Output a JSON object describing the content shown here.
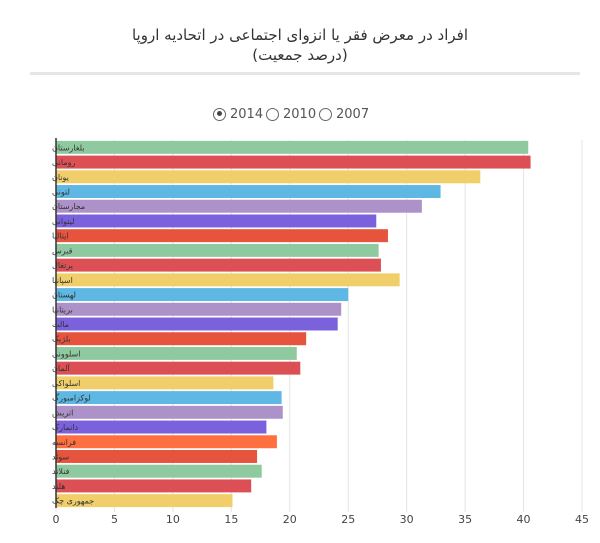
{
  "header": {
    "title": "افراد در معرض فقر یا انزوای اجتماعی در اتحادیه اروپا",
    "subtitle": "(درصد جمعیت)"
  },
  "legend": {
    "items": [
      {
        "label": "2014",
        "selected": true
      },
      {
        "label": "2010",
        "selected": false
      },
      {
        "label": "2007",
        "selected": false
      }
    ]
  },
  "chart_data": {
    "type": "bar",
    "orientation": "horizontal",
    "title": "افراد در معرض فقر یا انزوای اجتماعی در اتحادیه اروپا",
    "subtitle": "(درصد جمعیت)",
    "xlabel": "",
    "ylabel": "",
    "xlim": [
      0,
      45
    ],
    "xticks": [
      0,
      5,
      10,
      15,
      20,
      25,
      30,
      35,
      40,
      45
    ],
    "grid": true,
    "legend_position": "top-center",
    "series_name": "2014",
    "categories": [
      "بلغارستان",
      "رومانی",
      "یونان",
      "لتونی",
      "مجارستان",
      "لیتوانی",
      "ایتالیا",
      "قبرس",
      "پرتغال",
      "اسپانیا",
      "لهستان",
      "بریتانیا",
      "مالت",
      "بلژیک",
      "اسلوونی",
      "آلمان",
      "اسلواکی",
      "لوکزامبورگ",
      "اتریش",
      "دانمارک",
      "فرانسه",
      "سوئد",
      "فنلاند",
      "هلند",
      "جمهوری چک"
    ],
    "values": [
      40.4,
      40.6,
      36.3,
      32.9,
      31.3,
      27.4,
      28.4,
      27.6,
      27.8,
      29.4,
      25.0,
      24.4,
      24.1,
      21.4,
      20.6,
      20.9,
      18.6,
      19.3,
      19.4,
      18.0,
      18.9,
      17.2,
      17.6,
      16.7,
      15.1
    ],
    "colors": [
      "#8fc9a0",
      "#dc5055",
      "#f0cf6a",
      "#5eb8e3",
      "#ad92c9",
      "#7b61db",
      "#e7543d",
      "#8fc9a0",
      "#dc5055",
      "#f0cf6a",
      "#5eb8e3",
      "#ad92c9",
      "#7b61db",
      "#e7543d",
      "#8fc9a0",
      "#dc5055",
      "#f0cf6a",
      "#5eb8e3",
      "#ad92c9",
      "#7b61db",
      "#ff6f40",
      "#e7543d",
      "#8fc9a0",
      "#dc5055",
      "#f0cf6a"
    ]
  }
}
